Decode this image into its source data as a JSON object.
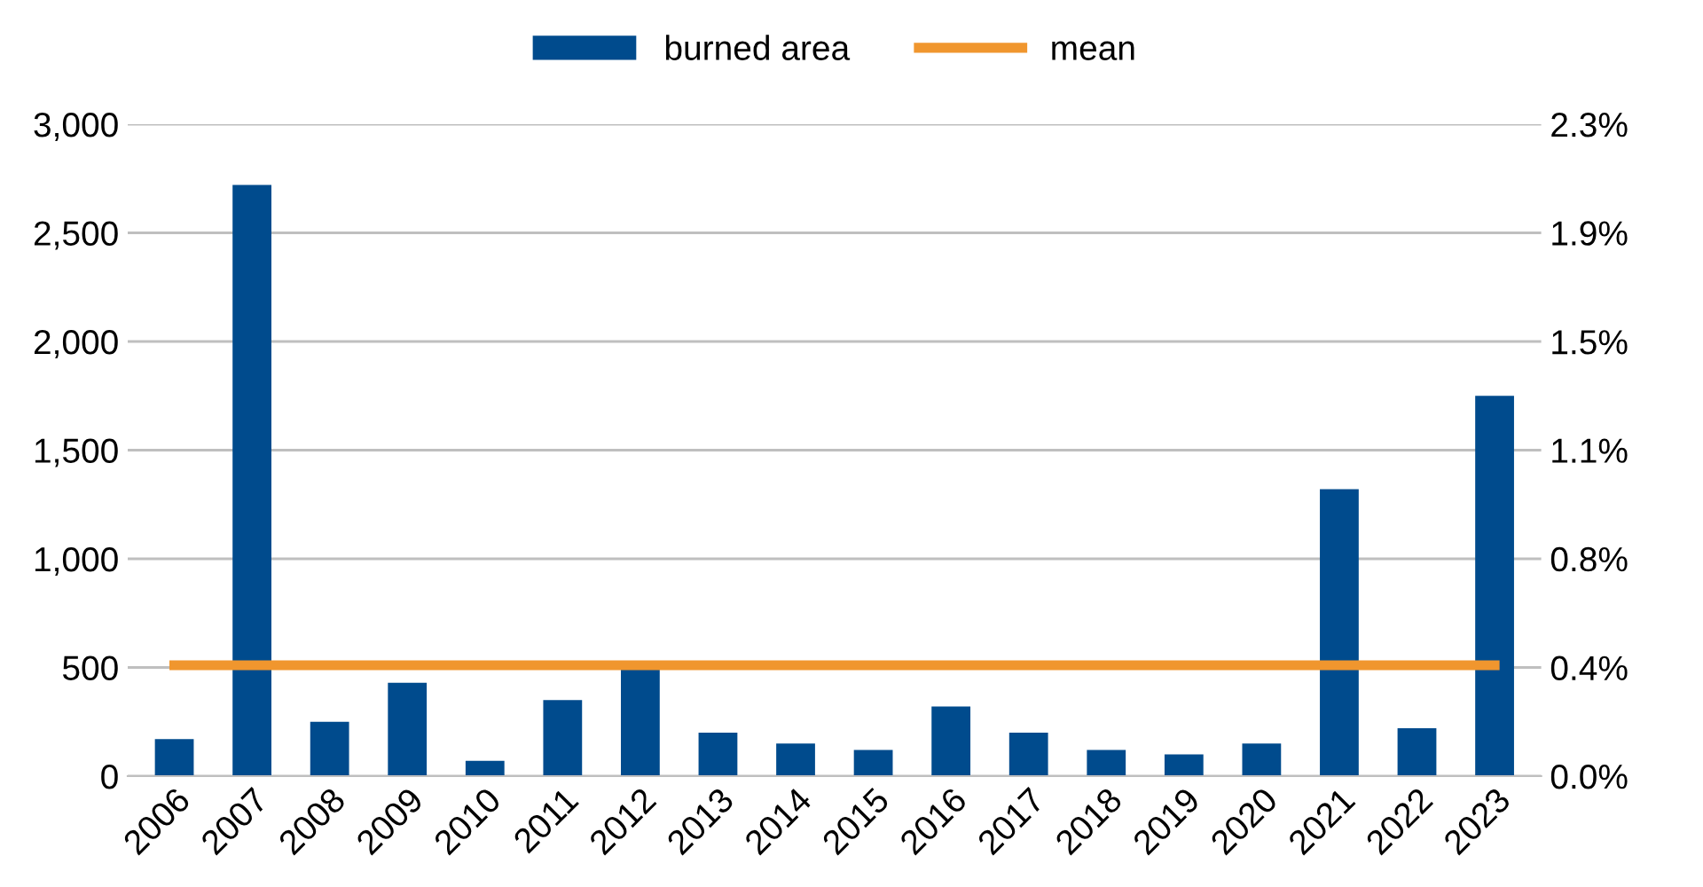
{
  "chart_data": {
    "type": "bar",
    "categories": [
      "2006",
      "2007",
      "2008",
      "2009",
      "2010",
      "2011",
      "2012",
      "2013",
      "2014",
      "2015",
      "2016",
      "2017",
      "2018",
      "2019",
      "2020",
      "2021",
      "2022",
      "2023"
    ],
    "series": [
      {
        "name": "burned area",
        "color": "#004b8d",
        "values": [
          170,
          2720,
          250,
          430,
          70,
          350,
          490,
          200,
          150,
          120,
          320,
          200,
          120,
          100,
          150,
          1320,
          220,
          1750
        ]
      },
      {
        "name": "mean",
        "type": "line",
        "color": "#f0962e",
        "values": [
          510,
          510,
          510,
          510,
          510,
          510,
          510,
          510,
          510,
          510,
          510,
          510,
          510,
          510,
          510,
          510,
          510,
          510
        ]
      }
    ],
    "ylim": [
      0,
      3000
    ],
    "yticks": [
      0,
      {
        "value": 500,
        "label": "500"
      },
      {
        "value": 1000,
        "label": "1,000"
      },
      {
        "value": 1500,
        "label": "1,500"
      },
      {
        "value": 2000,
        "label": "2,000"
      },
      {
        "value": 2500,
        "label": "2,500"
      },
      {
        "value": 3000,
        "label": "3,000"
      }
    ],
    "y2lim": [
      0,
      2.3
    ],
    "y2ticks": [
      {
        "value": 0,
        "label": "0.0%"
      },
      {
        "value": 0.383,
        "label": "0.4%"
      },
      {
        "value": 0.767,
        "label": "0.8%"
      },
      {
        "value": 1.15,
        "label": "1.1%"
      },
      {
        "value": 1.533,
        "label": "1.5%"
      },
      {
        "value": 1.917,
        "label": "1.9%"
      },
      {
        "value": 2.3,
        "label": "2.3%"
      }
    ],
    "grid": "y",
    "legend": "top"
  }
}
